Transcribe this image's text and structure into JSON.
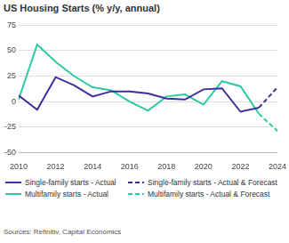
{
  "chart_data": {
    "type": "line",
    "title": "US Housing Starts (% y/y, annual)",
    "source": "Sources: Refinitiv, Capital Economics",
    "x": [
      2010,
      2011,
      2012,
      2013,
      2014,
      2015,
      2016,
      2017,
      2018,
      2019,
      2020,
      2021,
      2022,
      2023,
      2024
    ],
    "series": [
      {
        "name": "Single-family starts - Actual",
        "color": "#3b2f9e",
        "line_style": "solid",
        "values": [
          6,
          -8,
          24,
          16,
          5,
          10,
          10,
          8,
          3,
          2,
          12,
          13,
          -10,
          -6,
          null
        ]
      },
      {
        "name": "Single-family starts - Actual & Forecast",
        "color": "#3b2f9e",
        "line_style": "dashed",
        "values": [
          null,
          null,
          null,
          null,
          null,
          null,
          null,
          null,
          null,
          null,
          null,
          null,
          null,
          -6,
          14
        ]
      },
      {
        "name": "Multifamily starts - Actual",
        "color": "#2dc9a2",
        "line_style": "solid",
        "values": [
          2,
          56,
          39,
          25,
          14,
          11,
          0,
          -9,
          5,
          7,
          -3,
          20,
          15,
          -12,
          null
        ]
      },
      {
        "name": "Multifamily starts - Actual & Forecast",
        "color": "#2dc9a2",
        "line_style": "dashed",
        "values": [
          null,
          null,
          null,
          null,
          null,
          null,
          null,
          null,
          null,
          null,
          null,
          null,
          null,
          -12,
          -29
        ]
      }
    ],
    "xlim": [
      2010,
      2024
    ],
    "xticks": [
      2010,
      2012,
      2014,
      2016,
      2018,
      2020,
      2022,
      2024
    ],
    "ylim": [
      -50,
      75
    ],
    "yticks": [
      -50,
      -25,
      0,
      25,
      50,
      75
    ],
    "grid": true,
    "legend": "bottom"
  }
}
